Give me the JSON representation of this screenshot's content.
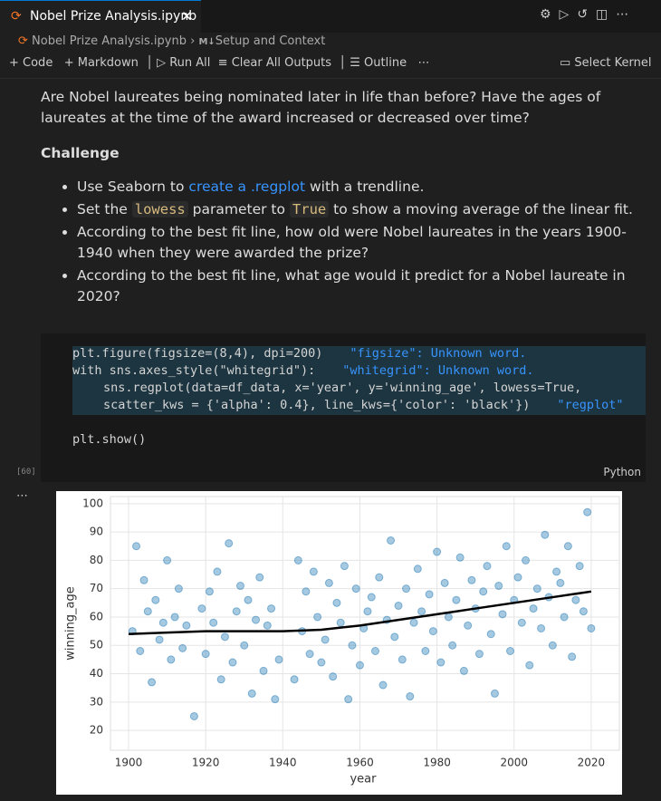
{
  "tab": {
    "title": "Nobel Prize Analysis.ipynb"
  },
  "breadcrumb": {
    "file": "Nobel Prize Analysis.ipynb",
    "section": "Setup and Context"
  },
  "toolbar": {
    "code": "Code",
    "markdown": "Markdown",
    "run_all": "Run All",
    "clear": "Clear All Outputs",
    "outline": "Outline",
    "kernel": "Select Kernel"
  },
  "markdown": {
    "question": "Are Nobel laureates being nominated later in life than before? Have the ages of laureates at the time of the award increased or decreased over time?",
    "heading": "Challenge",
    "bullets": [
      [
        "Use Seaborn to ",
        "create a .regplot",
        " with a trendline."
      ],
      [
        "Set the ",
        "lowess",
        " parameter to ",
        "True",
        " to show a moving average of the linear fit."
      ],
      [
        "According to the best fit line, how old were Nobel laureates in the years 1900-1940 when they were awarded the prize?"
      ],
      [
        "According to the best fit line, what age would it predict for a Nobel laureate in 2020?"
      ]
    ]
  },
  "code": {
    "lines": [
      {
        "text": "plt.figure(figsize=(8,4), dpi=200)",
        "hint": "\"figsize\": Unknown word."
      },
      {
        "text": "with sns.axes_style(\"whitegrid\"):",
        "hint": "\"whitegrid\": Unknown word."
      },
      {
        "text": "sns.regplot(data=df_data, x='year', y='winning_age', lowess=True,"
      },
      {
        "text": "scatter_kws = {'alpha': 0.4}, line_kws={'color': 'black'})",
        "hint": "\"regplot\""
      },
      {
        "text": "plt.show()"
      }
    ],
    "count": "[60]",
    "language": "Python"
  },
  "chart_data": {
    "type": "scatter",
    "xlabel": "year",
    "ylabel": "winning_age",
    "xlim": [
      1895.3,
      2027.3
    ],
    "ylim": [
      13,
      102.5
    ],
    "xticks": [
      1900,
      1920,
      1940,
      1960,
      1980,
      2000,
      2020
    ],
    "yticks": [
      20,
      30,
      40,
      50,
      60,
      70,
      80,
      90,
      100
    ],
    "grid": true,
    "points": {
      "color": "#1f77b4",
      "x": [
        1901,
        1902,
        1903,
        1904,
        1905,
        1906,
        1907,
        1908,
        1909,
        1910,
        1911,
        1912,
        1913,
        1914,
        1915,
        1917,
        1919,
        1920,
        1921,
        1922,
        1923,
        1924,
        1925,
        1926,
        1927,
        1928,
        1929,
        1930,
        1931,
        1932,
        1933,
        1934,
        1935,
        1936,
        1937,
        1938,
        1939,
        1943,
        1944,
        1945,
        1946,
        1947,
        1948,
        1949,
        1950,
        1951,
        1952,
        1953,
        1954,
        1955,
        1956,
        1957,
        1958,
        1959,
        1960,
        1961,
        1962,
        1963,
        1964,
        1965,
        1966,
        1967,
        1968,
        1969,
        1970,
        1971,
        1972,
        1973,
        1974,
        1975,
        1976,
        1977,
        1978,
        1979,
        1980,
        1981,
        1982,
        1983,
        1984,
        1985,
        1986,
        1987,
        1988,
        1989,
        1990,
        1991,
        1992,
        1993,
        1994,
        1995,
        1996,
        1997,
        1998,
        1999,
        2000,
        2001,
        2002,
        2003,
        2004,
        2005,
        2006,
        2007,
        2008,
        2009,
        2010,
        2011,
        2012,
        2013,
        2014,
        2015,
        2016,
        2017,
        2018,
        2019,
        2020
      ],
      "y": [
        55,
        85,
        48,
        73,
        62,
        37,
        66,
        52,
        58,
        80,
        45,
        60,
        70,
        49,
        57,
        25,
        63,
        47,
        69,
        58,
        76,
        38,
        53,
        86,
        44,
        62,
        71,
        50,
        66,
        33,
        59,
        74,
        41,
        57,
        63,
        31,
        45,
        38,
        80,
        55,
        69,
        47,
        76,
        60,
        44,
        52,
        72,
        39,
        65,
        58,
        78,
        31,
        50,
        70,
        43,
        56,
        62,
        67,
        48,
        74,
        36,
        59,
        87,
        53,
        64,
        45,
        70,
        32,
        58,
        77,
        62,
        48,
        68,
        55,
        83,
        44,
        72,
        60,
        50,
        66,
        81,
        41,
        57,
        73,
        63,
        47,
        69,
        78,
        54,
        33,
        71,
        61,
        85,
        48,
        66,
        74,
        58,
        80,
        43,
        63,
        70,
        56,
        89,
        67,
        50,
        76,
        72,
        60,
        85,
        46,
        66,
        78,
        62,
        97,
        56
      ]
    },
    "trend": {
      "color": "#000000",
      "x": [
        1900,
        1910,
        1920,
        1930,
        1940,
        1950,
        1960,
        1970,
        1980,
        1990,
        2000,
        2010,
        2020
      ],
      "y": [
        54,
        54.5,
        55,
        55,
        55,
        55.5,
        57,
        59,
        61,
        63,
        65,
        67,
        69
      ]
    }
  }
}
